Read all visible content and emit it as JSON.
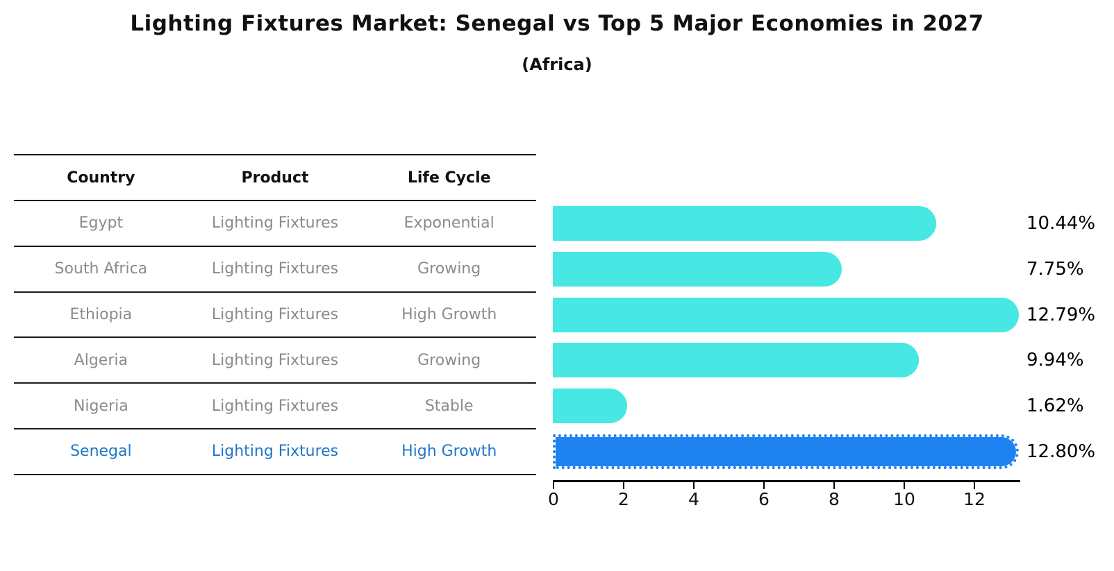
{
  "title": "Lighting Fixtures Market: Senegal vs Top 5 Major Economies in 2027",
  "subtitle": "(Africa)",
  "table": {
    "headers": [
      "Country",
      "Product",
      "Life Cycle"
    ],
    "rows": [
      {
        "country": "Egypt",
        "product": "Lighting Fixtures",
        "life_cycle": "Exponential"
      },
      {
        "country": "South Africa",
        "product": "Lighting Fixtures",
        "life_cycle": "Growing"
      },
      {
        "country": "Ethiopia",
        "product": "Lighting Fixtures",
        "life_cycle": "High Growth"
      },
      {
        "country": "Algeria",
        "product": "Lighting Fixtures",
        "life_cycle": "Growing"
      },
      {
        "country": "Nigeria",
        "product": "Lighting Fixtures",
        "life_cycle": "Stable"
      },
      {
        "country": "Senegal",
        "product": "Lighting Fixtures",
        "life_cycle": "High Growth"
      }
    ],
    "highlight_row": "Senegal"
  },
  "chart_data": {
    "type": "bar",
    "orientation": "horizontal",
    "categories": [
      "Egypt",
      "South Africa",
      "Ethiopia",
      "Algeria",
      "Nigeria",
      "Senegal"
    ],
    "values": [
      10.44,
      7.75,
      12.79,
      9.94,
      1.62,
      12.8
    ],
    "value_labels": [
      "10.44%",
      "7.75%",
      "12.79%",
      "9.94%",
      "1.62%",
      "12.80%"
    ],
    "xticks": [
      0,
      2,
      4,
      6,
      8,
      10,
      12
    ],
    "xlim": [
      0,
      13.4
    ],
    "grid": false,
    "legend": "none",
    "bar_color": "#47e8e3",
    "highlight_bar_color": "#1e82f0",
    "highlight_index": 5,
    "highlight_text_color": "#1f77c8",
    "muted_text_color": "#8b8b8b"
  }
}
